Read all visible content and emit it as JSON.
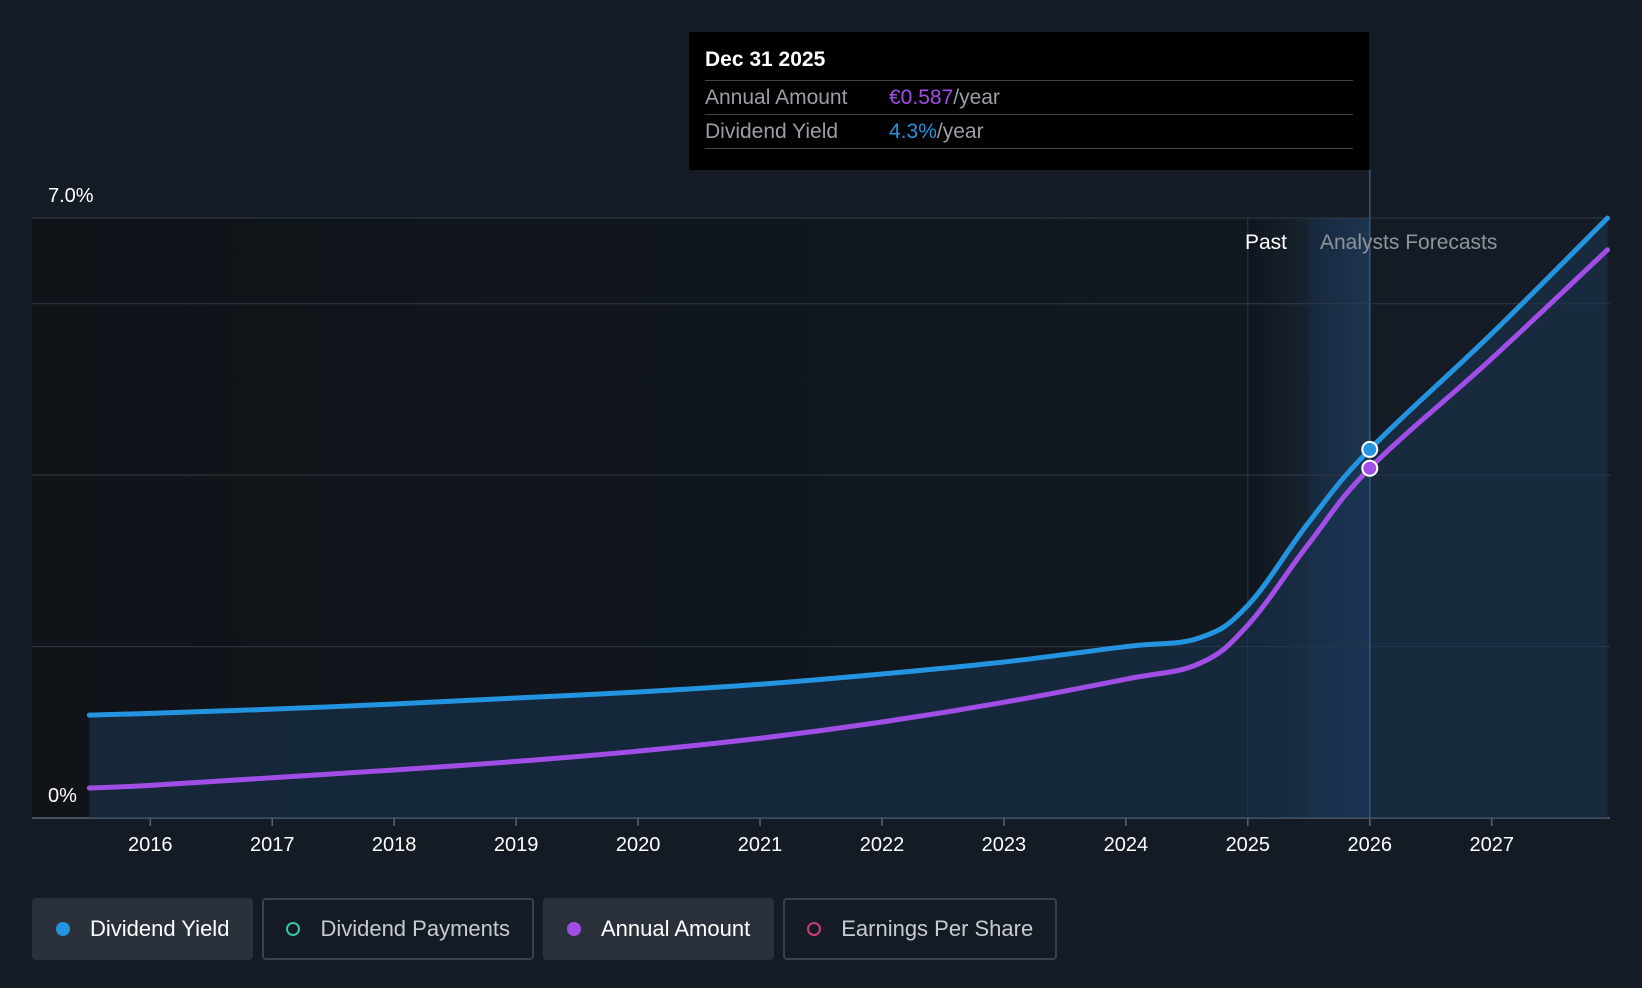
{
  "chart_data": {
    "type": "line",
    "title": "",
    "x": [
      2015.5,
      2016,
      2017,
      2018,
      2019,
      2020,
      2021,
      2022,
      2023,
      2024,
      2024.6,
      2025,
      2025.5,
      2026,
      2027,
      2027.95
    ],
    "series": [
      {
        "name": "Dividend Yield",
        "color": "#2394df",
        "values": [
          1.2,
          1.22,
          1.27,
          1.33,
          1.4,
          1.47,
          1.56,
          1.68,
          1.82,
          2.0,
          2.1,
          2.48,
          3.45,
          4.3,
          5.65,
          7.0
        ]
      },
      {
        "name": "Annual Amount",
        "color": "#a04ee6",
        "values": [
          0.35,
          0.38,
          0.47,
          0.56,
          0.66,
          0.78,
          0.93,
          1.12,
          1.35,
          1.62,
          1.8,
          2.25,
          3.2,
          4.08,
          5.36,
          6.63
        ]
      }
    ],
    "ylim": [
      0,
      7.0
    ],
    "yticks": [
      {
        "value": 7.0,
        "label": "7.0%"
      },
      {
        "value": 0,
        "label": "0%"
      }
    ],
    "gridlines": [
      7.0,
      6.0,
      4.0,
      2.0,
      0
    ],
    "xticks": [
      2016,
      2017,
      2018,
      2019,
      2020,
      2021,
      2022,
      2023,
      2024,
      2025,
      2026,
      2027
    ],
    "xlim": [
      2015.03,
      2027.97
    ],
    "past_end": 2025.5,
    "past_band_start": 2025,
    "marker_x": 2026,
    "regions": {
      "past": "Past",
      "forecast": "Analysts Forecasts"
    },
    "xlabel": "",
    "ylabel": ""
  },
  "tooltip": {
    "date": "Dec 31 2025",
    "rows": [
      {
        "key": "Annual Amount",
        "value": "€0.587",
        "unit": "/year",
        "color": "#a04ee6"
      },
      {
        "key": "Dividend Yield",
        "value": "4.3%",
        "unit": "/year",
        "color": "#2394df"
      }
    ]
  },
  "legend": [
    {
      "label": "Dividend Yield",
      "color": "#2394df",
      "active": true
    },
    {
      "label": "Dividend Payments",
      "color": "#3fbfae",
      "active": false
    },
    {
      "label": "Annual Amount",
      "color": "#a04ee6",
      "active": true
    },
    {
      "label": "Earnings Per Share",
      "color": "#c93d74",
      "active": false
    }
  ]
}
